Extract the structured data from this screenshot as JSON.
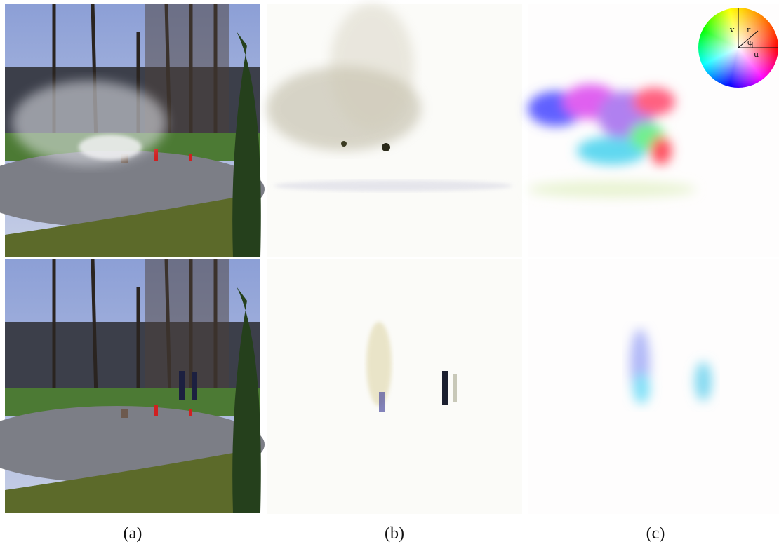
{
  "panels": [
    {
      "label": "(a)"
    },
    {
      "label": "(b)"
    },
    {
      "label": "(c)"
    }
  ],
  "color_wheel": {
    "labels": [
      "v",
      "r",
      "φ",
      "u"
    ]
  }
}
